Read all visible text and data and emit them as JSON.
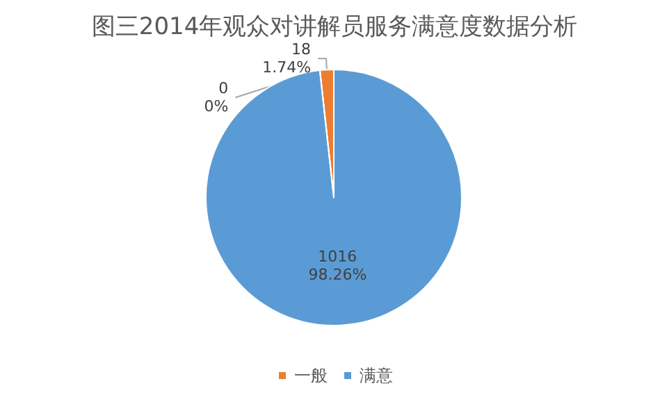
{
  "chart_data": {
    "type": "pie",
    "title": "图三2014年观众对讲解员服务满意度数据分析",
    "categories": [
      "一般",
      "满意",
      null
    ],
    "values": [
      18,
      1016,
      0
    ],
    "colors": [
      "#ed7d31",
      "#5b9bd5",
      "#a5a5a5"
    ],
    "value_labels": [
      "18\n1.74%",
      "1016\n98.26%",
      "0\n0%"
    ],
    "legend": "bottom"
  }
}
